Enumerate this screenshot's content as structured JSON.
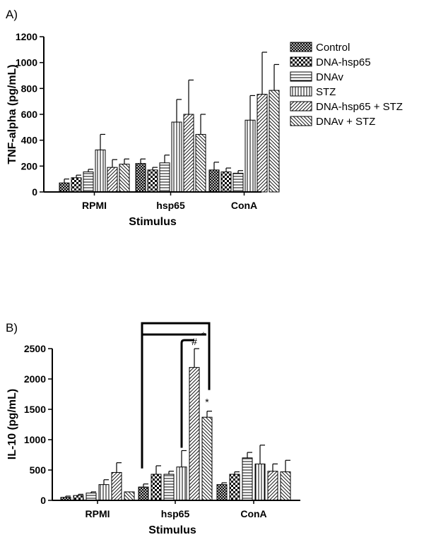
{
  "chart_data": [
    {
      "type": "bar",
      "panel_label": "A)",
      "xlabel": "Stimulus",
      "ylabel": "TNF-alpha (pg/mL)",
      "ylim": [
        0,
        1200
      ],
      "yticks": [
        0,
        200,
        400,
        600,
        800,
        1000,
        1200
      ],
      "categories": [
        "RPMI",
        "hsp65",
        "ConA"
      ],
      "legend_position": "right",
      "series": [
        {
          "name": "Control",
          "pattern": "crosshatch",
          "values": [
            70,
            220,
            170
          ],
          "errors": [
            30,
            35,
            60
          ]
        },
        {
          "name": "DNA-hsp65",
          "pattern": "checker",
          "values": [
            110,
            170,
            155
          ],
          "errors": [
            20,
            20,
            30
          ]
        },
        {
          "name": "DNAv",
          "pattern": "horizontal",
          "values": [
            155,
            225,
            145
          ],
          "errors": [
            20,
            60,
            20
          ]
        },
        {
          "name": "STZ",
          "pattern": "vertical",
          "values": [
            325,
            540,
            555
          ],
          "errors": [
            120,
            175,
            190
          ]
        },
        {
          "name": "DNA-hsp65 + STZ",
          "pattern": "diag-up",
          "values": [
            190,
            600,
            755
          ],
          "errors": [
            60,
            265,
            325
          ]
        },
        {
          "name": "DNAv + STZ",
          "pattern": "diag-down",
          "values": [
            215,
            445,
            785
          ],
          "errors": [
            40,
            155,
            200
          ]
        }
      ]
    },
    {
      "type": "bar",
      "panel_label": "B)",
      "xlabel": "Stimulus",
      "ylabel": "IL-10 (pg/mL)",
      "ylim": [
        0,
        2500
      ],
      "yticks": [
        0,
        500,
        1000,
        1500,
        2000,
        2500
      ],
      "categories": [
        "RPMI",
        "hsp65",
        "ConA"
      ],
      "series": [
        {
          "name": "Control",
          "pattern": "crosshatch",
          "values": [
            50,
            220,
            260
          ],
          "errors": [
            20,
            50,
            30
          ]
        },
        {
          "name": "DNA-hsp65",
          "pattern": "checker",
          "values": [
            80,
            430,
            430
          ],
          "errors": [
            20,
            140,
            40
          ]
        },
        {
          "name": "DNAv",
          "pattern": "horizontal",
          "values": [
            120,
            430,
            700
          ],
          "errors": [
            20,
            50,
            90
          ]
        },
        {
          "name": "STZ",
          "pattern": "vertical",
          "values": [
            260,
            550,
            600
          ],
          "errors": [
            80,
            270,
            310
          ]
        },
        {
          "name": "DNA-hsp65 + STZ",
          "pattern": "diag-up",
          "values": [
            460,
            2190,
            480
          ],
          "errors": [
            160,
            310,
            120
          ]
        },
        {
          "name": "DNAv + STZ",
          "pattern": "diag-down",
          "values": [
            140,
            1370,
            470
          ],
          "errors": [
            0,
            100,
            190
          ]
        }
      ],
      "significance": [
        {
          "symbol": "*",
          "from_series": 0,
          "to_series": 5,
          "category": "hsp65"
        },
        {
          "symbol": "#",
          "from_series": 3,
          "to_series": 4,
          "category": "hsp65"
        },
        {
          "symbol": "*",
          "series": 5,
          "category": "hsp65"
        }
      ]
    }
  ]
}
